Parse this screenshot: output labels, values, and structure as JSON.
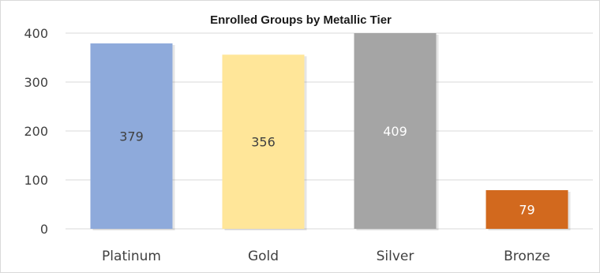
{
  "chart_data": {
    "type": "bar",
    "title": "Enrolled Groups by Metallic Tier",
    "categories": [
      "Platinum",
      "Gold",
      "Silver",
      "Bronze"
    ],
    "values": [
      379,
      356,
      409,
      79
    ],
    "ylim": [
      0,
      400
    ],
    "yticks": [
      "0",
      "100",
      "200",
      "300",
      "400"
    ],
    "grid": true,
    "legend": "none",
    "colors": [
      "#8eaadb",
      "#ffe699",
      "#a5a5a5",
      "#d2691e"
    ],
    "label_colors": [
      "#404040",
      "#404040",
      "#ffffff",
      "#ffffff"
    ]
  }
}
